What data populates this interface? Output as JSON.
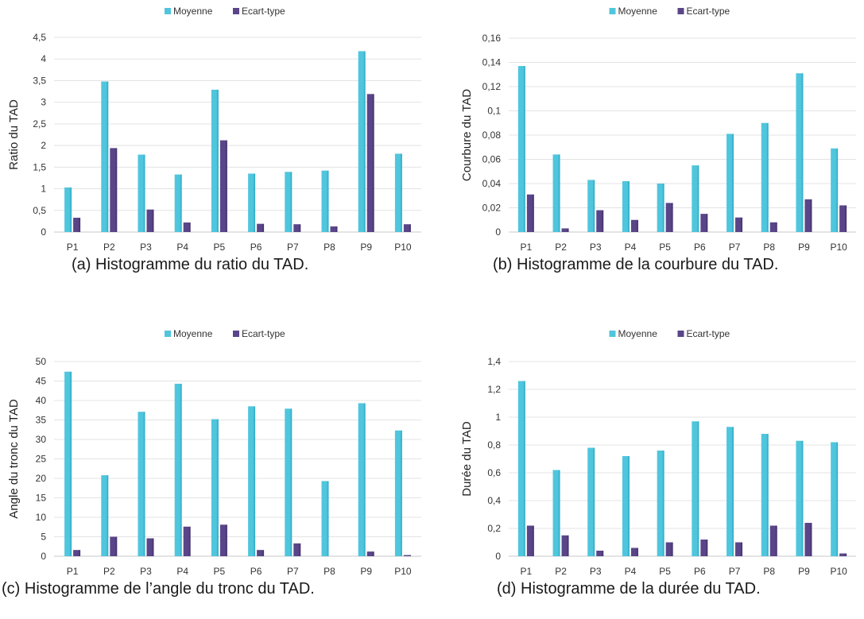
{
  "legend": {
    "mean": "Moyenne",
    "std": "Ecart-type"
  },
  "colors": {
    "mean": "#4fc6dd",
    "mean_dark": "#2aa7c3",
    "std": "#5a4589",
    "std_dark": "#3f2f68"
  },
  "chart_data": [
    {
      "type": "bar",
      "caption": "(a)  Histogramme du ratio du TAD.",
      "ylabel": "Ratio du TAD",
      "categories": [
        "P1",
        "P2",
        "P3",
        "P4",
        "P5",
        "P6",
        "P7",
        "P8",
        "P9",
        "P10"
      ],
      "series": [
        {
          "name": "Moyenne",
          "values": [
            1.03,
            3.48,
            1.79,
            1.33,
            3.29,
            1.35,
            1.39,
            1.42,
            4.18,
            1.81
          ]
        },
        {
          "name": "Ecart-type",
          "values": [
            0.33,
            1.94,
            0.52,
            0.22,
            2.12,
            0.19,
            0.18,
            0.13,
            3.19,
            0.18
          ]
        }
      ],
      "ylim": [
        0,
        4.5
      ],
      "yticks": [
        "0",
        "0,5",
        "1",
        "1,5",
        "2",
        "2,5",
        "3",
        "3,5",
        "4",
        "4,5"
      ],
      "ytick_values": [
        0,
        0.5,
        1,
        1.5,
        2,
        2.5,
        3,
        3.5,
        4,
        4.5
      ],
      "legend_position": "top-center",
      "grid": true
    },
    {
      "type": "bar",
      "caption": "(b)  Histogramme de la courbure du TAD.",
      "ylabel": "Courbure du TAD",
      "categories": [
        "P1",
        "P2",
        "P3",
        "P4",
        "P5",
        "P6",
        "P7",
        "P8",
        "P9",
        "P10"
      ],
      "series": [
        {
          "name": "Moyenne",
          "values": [
            0.137,
            0.064,
            0.043,
            0.042,
            0.04,
            0.055,
            0.081,
            0.09,
            0.131,
            0.069
          ]
        },
        {
          "name": "Ecart-type",
          "values": [
            0.031,
            0.003,
            0.018,
            0.01,
            0.024,
            0.015,
            0.012,
            0.008,
            0.027,
            0.022
          ]
        }
      ],
      "ylim": [
        0,
        0.16
      ],
      "yticks": [
        "0",
        "0,02",
        "0,04",
        "0,06",
        "0,08",
        "0,1",
        "0,12",
        "0,14",
        "0,16"
      ],
      "ytick_values": [
        0,
        0.02,
        0.04,
        0.06,
        0.08,
        0.1,
        0.12,
        0.14,
        0.16
      ],
      "legend_position": "top-center",
      "grid": true
    },
    {
      "type": "bar",
      "caption": "(c)  Histogramme de l’angle du tronc du TAD.",
      "ylabel": "Angle du tronc du TAD",
      "categories": [
        "P1",
        "P2",
        "P3",
        "P4",
        "P5",
        "P6",
        "P7",
        "P8",
        "P9",
        "P10"
      ],
      "series": [
        {
          "name": "Moyenne",
          "values": [
            47.4,
            20.8,
            37.1,
            44.3,
            35.2,
            38.5,
            37.9,
            19.3,
            39.3,
            32.3
          ]
        },
        {
          "name": "Ecart-type",
          "values": [
            1.6,
            5.0,
            4.6,
            7.6,
            8.1,
            1.6,
            3.3,
            0.0,
            1.2,
            0.3
          ]
        }
      ],
      "ylim": [
        0,
        50
      ],
      "yticks": [
        "0",
        "5",
        "10",
        "15",
        "20",
        "25",
        "30",
        "35",
        "40",
        "45",
        "50"
      ],
      "ytick_values": [
        0,
        5,
        10,
        15,
        20,
        25,
        30,
        35,
        40,
        45,
        50
      ],
      "legend_position": "top-center",
      "grid": true
    },
    {
      "type": "bar",
      "caption": "(d)  Histogramme de la durée du TAD.",
      "ylabel": "Durée du TAD",
      "categories": [
        "P1",
        "P2",
        "P3",
        "P4",
        "P5",
        "P6",
        "P7",
        "P8",
        "P9",
        "P10"
      ],
      "series": [
        {
          "name": "Moyenne",
          "values": [
            1.26,
            0.62,
            0.78,
            0.72,
            0.76,
            0.97,
            0.93,
            0.88,
            0.83,
            0.82
          ]
        },
        {
          "name": "Ecart-type",
          "values": [
            0.22,
            0.15,
            0.04,
            0.06,
            0.1,
            0.12,
            0.1,
            0.22,
            0.24,
            0.02
          ]
        }
      ],
      "ylim": [
        0,
        1.4
      ],
      "yticks": [
        "0",
        "0,2",
        "0,4",
        "0,6",
        "0,8",
        "1",
        "1,2",
        "1,4"
      ],
      "ytick_values": [
        0,
        0.2,
        0.4,
        0.6,
        0.8,
        1,
        1.2,
        1.4
      ],
      "legend_position": "top-center",
      "grid": true
    }
  ]
}
